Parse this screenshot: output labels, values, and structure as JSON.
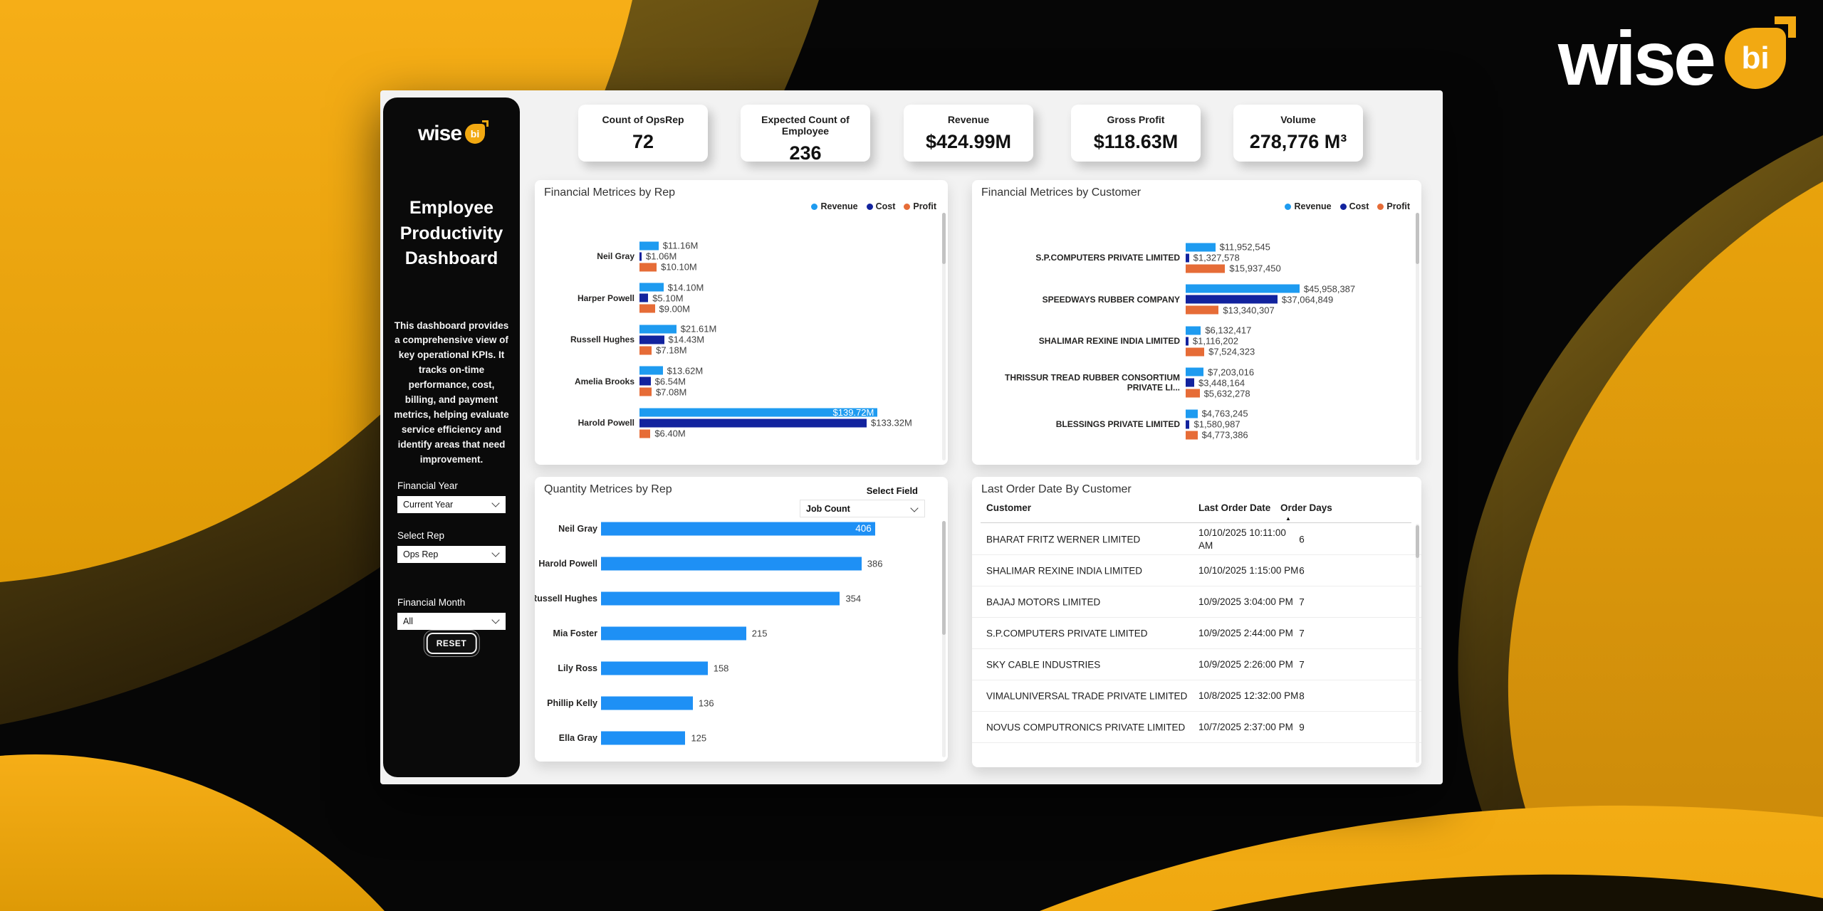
{
  "brand": {
    "word": "wise",
    "bi": "bi",
    "gold": "#F2A912"
  },
  "colors": {
    "revenue": "#1E9BF0",
    "cost": "#12239E",
    "profit": "#E66C37",
    "quantity": "#1E90F5"
  },
  "kpis": [
    {
      "label": "Count of OpsRep",
      "value": "72"
    },
    {
      "label": "Expected Count of Employee",
      "value": "236"
    },
    {
      "label": "Revenue",
      "value": "$424.99M"
    },
    {
      "label": "Gross Profit",
      "value": "$118.63M"
    },
    {
      "label": "Volume",
      "value": "278,776 M³"
    }
  ],
  "sidebar": {
    "title": "Employee Productivity Dashboard",
    "description": "This dashboard provides a comprehensive view of key operational KPIs. It tracks on-time performance, cost, billing, and payment metrics, helping evaluate service efficiency and identify areas that need improvement.",
    "filters": [
      {
        "label": "Financial Year",
        "value": "Current Year"
      },
      {
        "label": "Select Rep",
        "value": "Ops Rep"
      },
      {
        "label": "Financial Month",
        "value": "All"
      }
    ],
    "reset_label": "RESET"
  },
  "legend": [
    "Revenue",
    "Cost",
    "Profit"
  ],
  "chart_data": [
    {
      "type": "bar",
      "title": "Financial Metrices by Rep",
      "orientation": "horizontal",
      "categories": [
        "Neil Gray",
        "Harper Powell",
        "Russell Hughes",
        "Amelia Brooks",
        "Harold Powell"
      ],
      "series": [
        {
          "name": "Revenue",
          "values": [
            11.16,
            14.1,
            21.61,
            13.62,
            139.72
          ]
        },
        {
          "name": "Cost",
          "values": [
            1.06,
            5.1,
            14.43,
            6.54,
            133.32
          ]
        },
        {
          "name": "Profit",
          "values": [
            10.1,
            9.0,
            7.18,
            7.08,
            6.4
          ]
        }
      ],
      "labels": [
        [
          "$11.16M",
          "$1.06M",
          "$10.10M"
        ],
        [
          "$14.10M",
          "$5.10M",
          "$9.00M"
        ],
        [
          "$21.61M",
          "$14.43M",
          "$7.18M"
        ],
        [
          "$13.62M",
          "$6.54M",
          "$7.08M"
        ],
        [
          "$139.72M",
          "$133.32M",
          "$6.40M"
        ]
      ],
      "inside": [
        [
          false,
          false,
          false
        ],
        [
          false,
          false,
          false
        ],
        [
          false,
          false,
          false
        ],
        [
          false,
          false,
          false
        ],
        [
          true,
          false,
          false
        ]
      ],
      "axis_max": 140,
      "unit": "M USD",
      "legend_position": "top-right",
      "grid": false
    },
    {
      "type": "bar",
      "title": "Financial Metrices by Customer",
      "orientation": "horizontal",
      "categories": [
        "S.P.COMPUTERS PRIVATE LIMITED",
        "SPEEDWAYS RUBBER COMPANY",
        "SHALIMAR REXINE INDIA LIMITED",
        "THRISSUR TREAD RUBBER CONSORTIUM PRIVATE LI...",
        "BLESSINGS PRIVATE LIMITED"
      ],
      "series": [
        {
          "name": "Revenue",
          "values": [
            11952545,
            45958387,
            6132417,
            7203016,
            4763245
          ]
        },
        {
          "name": "Cost",
          "values": [
            1327578,
            37064849,
            1116202,
            3448164,
            1580987
          ]
        },
        {
          "name": "Profit",
          "values": [
            15937450,
            13340307,
            7524323,
            5632278,
            4773386
          ]
        }
      ],
      "labels": [
        [
          "$11,952,545",
          "$1,327,578",
          "$15,937,450"
        ],
        [
          "$45,958,387",
          "$37,064,849",
          "$13,340,307"
        ],
        [
          "$6,132,417",
          "$1,116,202",
          "$7,524,323"
        ],
        [
          "$7,203,016",
          "$3,448,164",
          "$5,632,278"
        ],
        [
          "$4,763,245",
          "$1,580,987",
          "$4,773,386"
        ]
      ],
      "inside": [
        [
          false,
          false,
          false
        ],
        [
          false,
          false,
          false
        ],
        [
          false,
          false,
          false
        ],
        [
          false,
          false,
          false
        ],
        [
          false,
          false,
          false
        ]
      ],
      "axis_max": 46000000,
      "unit": "USD",
      "legend_position": "top-right",
      "grid": false
    },
    {
      "type": "bar",
      "title": "Quantity Metrices by Rep",
      "orientation": "horizontal",
      "select_field_label": "Select Field",
      "select_field_value": "Job Count",
      "categories": [
        "Neil Gray",
        "Harold Powell",
        "Russell Hughes",
        "Mia Foster",
        "Lily Ross",
        "Phillip Kelly",
        "Ella Gray"
      ],
      "values": [
        406,
        386,
        354,
        215,
        158,
        136,
        125
      ],
      "inside": [
        true,
        false,
        false,
        false,
        false,
        false,
        false
      ],
      "axis_max": 420,
      "unit": "jobs",
      "grid": false
    }
  ],
  "orders_table": {
    "title": "Last Order Date By Customer",
    "columns": [
      "Customer",
      "Last Order Date",
      "Order Days"
    ],
    "sort_column": "Order Days",
    "sort_direction": "asc",
    "rows": [
      {
        "customer": "BHARAT FRITZ WERNER LIMITED",
        "date": "10/10/2025 10:11:00 AM",
        "days": "6"
      },
      {
        "customer": "SHALIMAR REXINE INDIA LIMITED",
        "date": "10/10/2025 1:15:00 PM",
        "days": "6"
      },
      {
        "customer": "BAJAJ MOTORS LIMITED",
        "date": "10/9/2025 3:04:00 PM",
        "days": "7"
      },
      {
        "customer": "S.P.COMPUTERS PRIVATE LIMITED",
        "date": "10/9/2025 2:44:00 PM",
        "days": "7"
      },
      {
        "customer": "SKY CABLE INDUSTRIES",
        "date": "10/9/2025 2:26:00 PM",
        "days": "7"
      },
      {
        "customer": "VIMALUNIVERSAL TRADE PRIVATE LIMITED",
        "date": "10/8/2025 12:32:00 PM",
        "days": "8"
      },
      {
        "customer": "NOVUS COMPUTRONICS PRIVATE LIMITED",
        "date": "10/7/2025 2:37:00 PM",
        "days": "9"
      }
    ]
  }
}
